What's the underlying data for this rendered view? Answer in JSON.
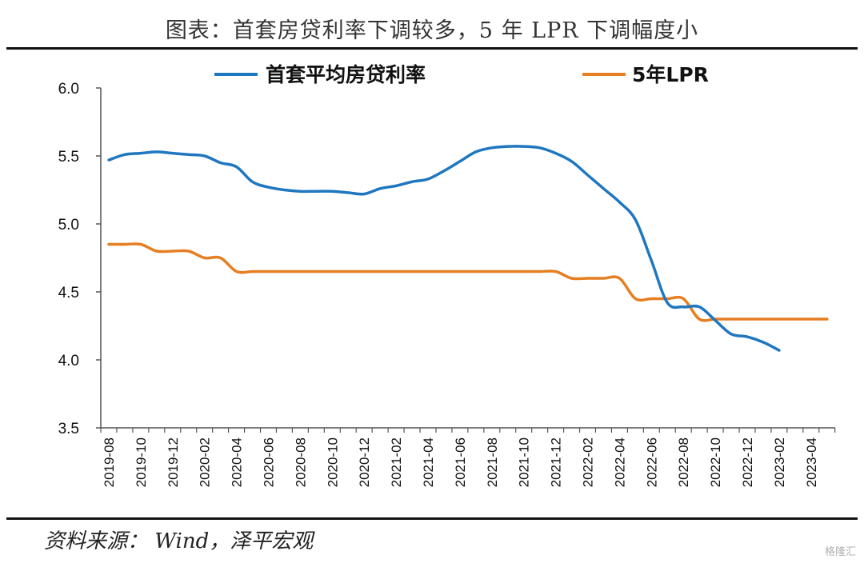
{
  "title": "图表：首套房贷利率下调较多，5 年 LPR 下调幅度小",
  "source": "资料来源： Wind，泽平宏观",
  "watermark": "格隆汇",
  "colors": {
    "series1": "#1f77c0",
    "series2": "#e67e22",
    "axis": "#555555"
  },
  "chart_data": {
    "type": "line",
    "title": "图表：首套房贷利率下调较多，5 年 LPR 下调幅度小",
    "xlabel": "",
    "ylabel": "",
    "ylim": [
      3.5,
      6.0
    ],
    "yticks": [
      "6.0",
      "5.5",
      "5.0",
      "4.5",
      "4.0",
      "3.5"
    ],
    "ytick_values": [
      6.0,
      5.5,
      5.0,
      4.5,
      4.0,
      3.5
    ],
    "x_tick_labels": [
      "2019-08",
      "2019-10",
      "2019-12",
      "2020-02",
      "2020-04",
      "2020-06",
      "2020-08",
      "2020-10",
      "2020-12",
      "2021-02",
      "2021-04",
      "2021-06",
      "2021-08",
      "2021-10",
      "2021-12",
      "2022-02",
      "2022-04",
      "2022-06",
      "2022-08",
      "2022-10",
      "2022-12",
      "2023-02",
      "2023-04"
    ],
    "x_month_count": 46,
    "legend_position": "top",
    "grid": false,
    "series": [
      {
        "name": "首套平均房贷利率",
        "color": "#1f77c0",
        "x": [
          0,
          1,
          2,
          3,
          4,
          5,
          6,
          7,
          8,
          9,
          10,
          11,
          12,
          13,
          14,
          15,
          16,
          17,
          18,
          19,
          20,
          21,
          22,
          23,
          24,
          25,
          26,
          27,
          28,
          29,
          30,
          31,
          32,
          33,
          34,
          35,
          36,
          37,
          38,
          39,
          40,
          41,
          42
        ],
        "values": [
          5.47,
          5.51,
          5.52,
          5.53,
          5.52,
          5.51,
          5.5,
          5.45,
          5.42,
          5.31,
          5.27,
          5.25,
          5.24,
          5.24,
          5.24,
          5.23,
          5.22,
          5.26,
          5.28,
          5.31,
          5.33,
          5.39,
          5.46,
          5.53,
          5.56,
          5.57,
          5.57,
          5.56,
          5.52,
          5.46,
          5.36,
          5.26,
          5.16,
          5.03,
          4.73,
          4.42,
          4.39,
          4.39,
          4.29,
          4.19,
          4.17,
          4.13,
          4.07
        ]
      },
      {
        "name": "5年LPR",
        "color": "#e67e22",
        "x": [
          0,
          1,
          2,
          3,
          4,
          5,
          6,
          7,
          8,
          9,
          10,
          11,
          12,
          13,
          14,
          15,
          16,
          17,
          18,
          19,
          20,
          21,
          22,
          23,
          24,
          25,
          26,
          27,
          28,
          29,
          30,
          31,
          32,
          33,
          34,
          35,
          36,
          37,
          38,
          39,
          40,
          41,
          42,
          43,
          44,
          45
        ],
        "values": [
          4.85,
          4.85,
          4.85,
          4.8,
          4.8,
          4.8,
          4.75,
          4.75,
          4.65,
          4.65,
          4.65,
          4.65,
          4.65,
          4.65,
          4.65,
          4.65,
          4.65,
          4.65,
          4.65,
          4.65,
          4.65,
          4.65,
          4.65,
          4.65,
          4.65,
          4.65,
          4.65,
          4.65,
          4.65,
          4.6,
          4.6,
          4.6,
          4.6,
          4.45,
          4.45,
          4.45,
          4.45,
          4.3,
          4.3,
          4.3,
          4.3,
          4.3,
          4.3,
          4.3,
          4.3,
          4.3
        ]
      }
    ]
  }
}
